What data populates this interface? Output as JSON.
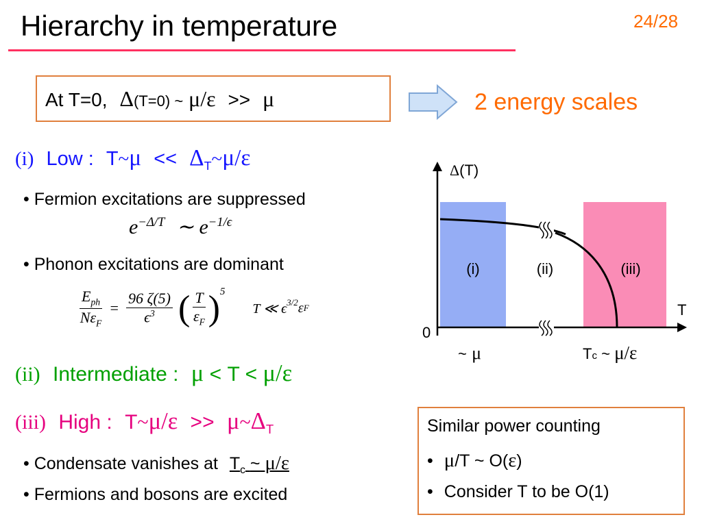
{
  "header": {
    "title": "Hierarchy in temperature",
    "page": "24/28"
  },
  "box": [
    "At T=0,",
    "Δ",
    "(T=0) ~",
    "μ/ε",
    ">>",
    "μ"
  ],
  "arrow_label": "2 energy scales",
  "low": {
    "num": "(i)",
    "parts": [
      "Low :",
      "T",
      "~",
      "μ",
      "<<",
      "Δ",
      "T",
      "~",
      "μ/ε"
    ]
  },
  "low_bullets": [
    "• Fermion excitations are suppressed",
    "• Phonon excitations are dominant"
  ],
  "formula1": [
    "e",
    "−Δ/T",
    "∼",
    "e",
    "−1/ϵ"
  ],
  "formula2": {
    "lhs_num": [
      "E",
      "ph"
    ],
    "lhs_den": [
      "Nε",
      "F"
    ],
    "eq": "=",
    "mid_num": "96 ζ(5)",
    "mid_den": [
      "ϵ",
      "3"
    ],
    "open": "(",
    "paren_num": "T",
    "paren_den": [
      "ε",
      "F"
    ],
    "close": ")",
    "power": "5",
    "cond": [
      "T ≪ ϵ",
      "3/2",
      "ε",
      "F"
    ]
  },
  "mid": {
    "num": "(ii)",
    "parts": [
      "Intermediate :",
      "μ",
      "<",
      "T",
      "<",
      "μ/ε"
    ]
  },
  "high": {
    "num": "(iii)",
    "parts": [
      "High :",
      "T",
      "~",
      "μ/ε",
      ">>",
      "μ",
      "~",
      "Δ",
      "T"
    ]
  },
  "high_bullets": [
    {
      "text": "• Condensate vanishes at",
      "tc": [
        "T",
        "c",
        "~",
        "μ/ε"
      ]
    },
    {
      "text": "• Fermions and bosons are excited"
    }
  ],
  "diagram": {
    "y_label": [
      "Δ",
      "(T)"
    ],
    "x_label": "T",
    "origin": "0",
    "regions": [
      "(i)",
      "(ii)",
      "(iii)"
    ],
    "mu_label": [
      "~",
      "μ"
    ],
    "tc_label": [
      "T",
      "c",
      "~",
      "μ/ε"
    ]
  },
  "note": {
    "title": "Similar power counting",
    "items": [
      [
        "•",
        "μ",
        "/T ~ O(",
        "ε",
        ")"
      ],
      [
        "•",
        "Consider T to be O(1)"
      ]
    ]
  }
}
